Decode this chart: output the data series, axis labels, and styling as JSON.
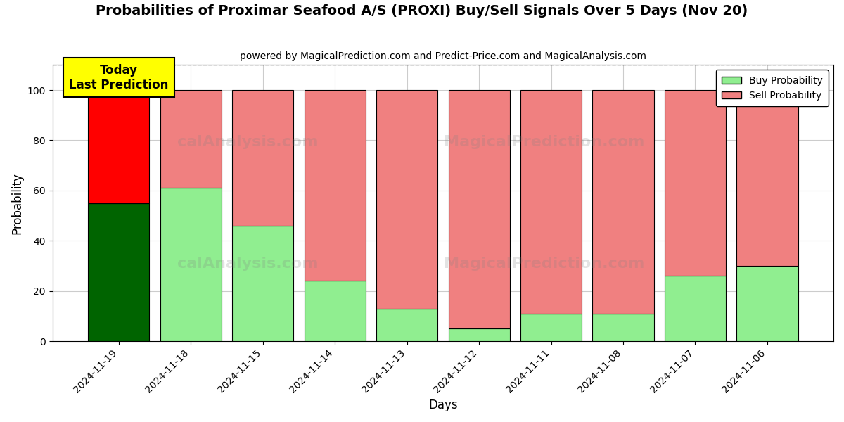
{
  "title": "Probabilities of Proximar Seafood A/S (PROXI) Buy/Sell Signals Over 5 Days (Nov 20)",
  "subtitle": "powered by MagicalPrediction.com and Predict-Price.com and MagicalAnalysis.com",
  "xlabel": "Days",
  "ylabel": "Probability",
  "dates": [
    "2024-11-19",
    "2024-11-18",
    "2024-11-15",
    "2024-11-14",
    "2024-11-13",
    "2024-11-12",
    "2024-11-11",
    "2024-11-08",
    "2024-11-07",
    "2024-11-06"
  ],
  "buy_values": [
    55,
    61,
    46,
    24,
    13,
    5,
    11,
    11,
    26,
    30
  ],
  "sell_values": [
    45,
    39,
    54,
    76,
    87,
    95,
    89,
    89,
    74,
    70
  ],
  "buy_color_today": "#006400",
  "sell_color_today": "#ff0000",
  "buy_color_normal": "#90ee90",
  "sell_color_normal": "#f08080",
  "bar_edge_color": "#000000",
  "ylim": [
    0,
    110
  ],
  "dashed_line_y": 110,
  "today_label_text": "Today\nLast Prediction",
  "today_label_bg": "#ffff00",
  "legend_buy_label": "Buy Probability",
  "legend_sell_label": "Sell Probability",
  "background_color": "#ffffff",
  "grid_color": "#cccccc",
  "watermark_row1": [
    "calAnalysis.com",
    "MagicalPrediction.com"
  ],
  "watermark_row2": [
    "calAnalysis.com",
    "MagicalPrediction.com"
  ]
}
